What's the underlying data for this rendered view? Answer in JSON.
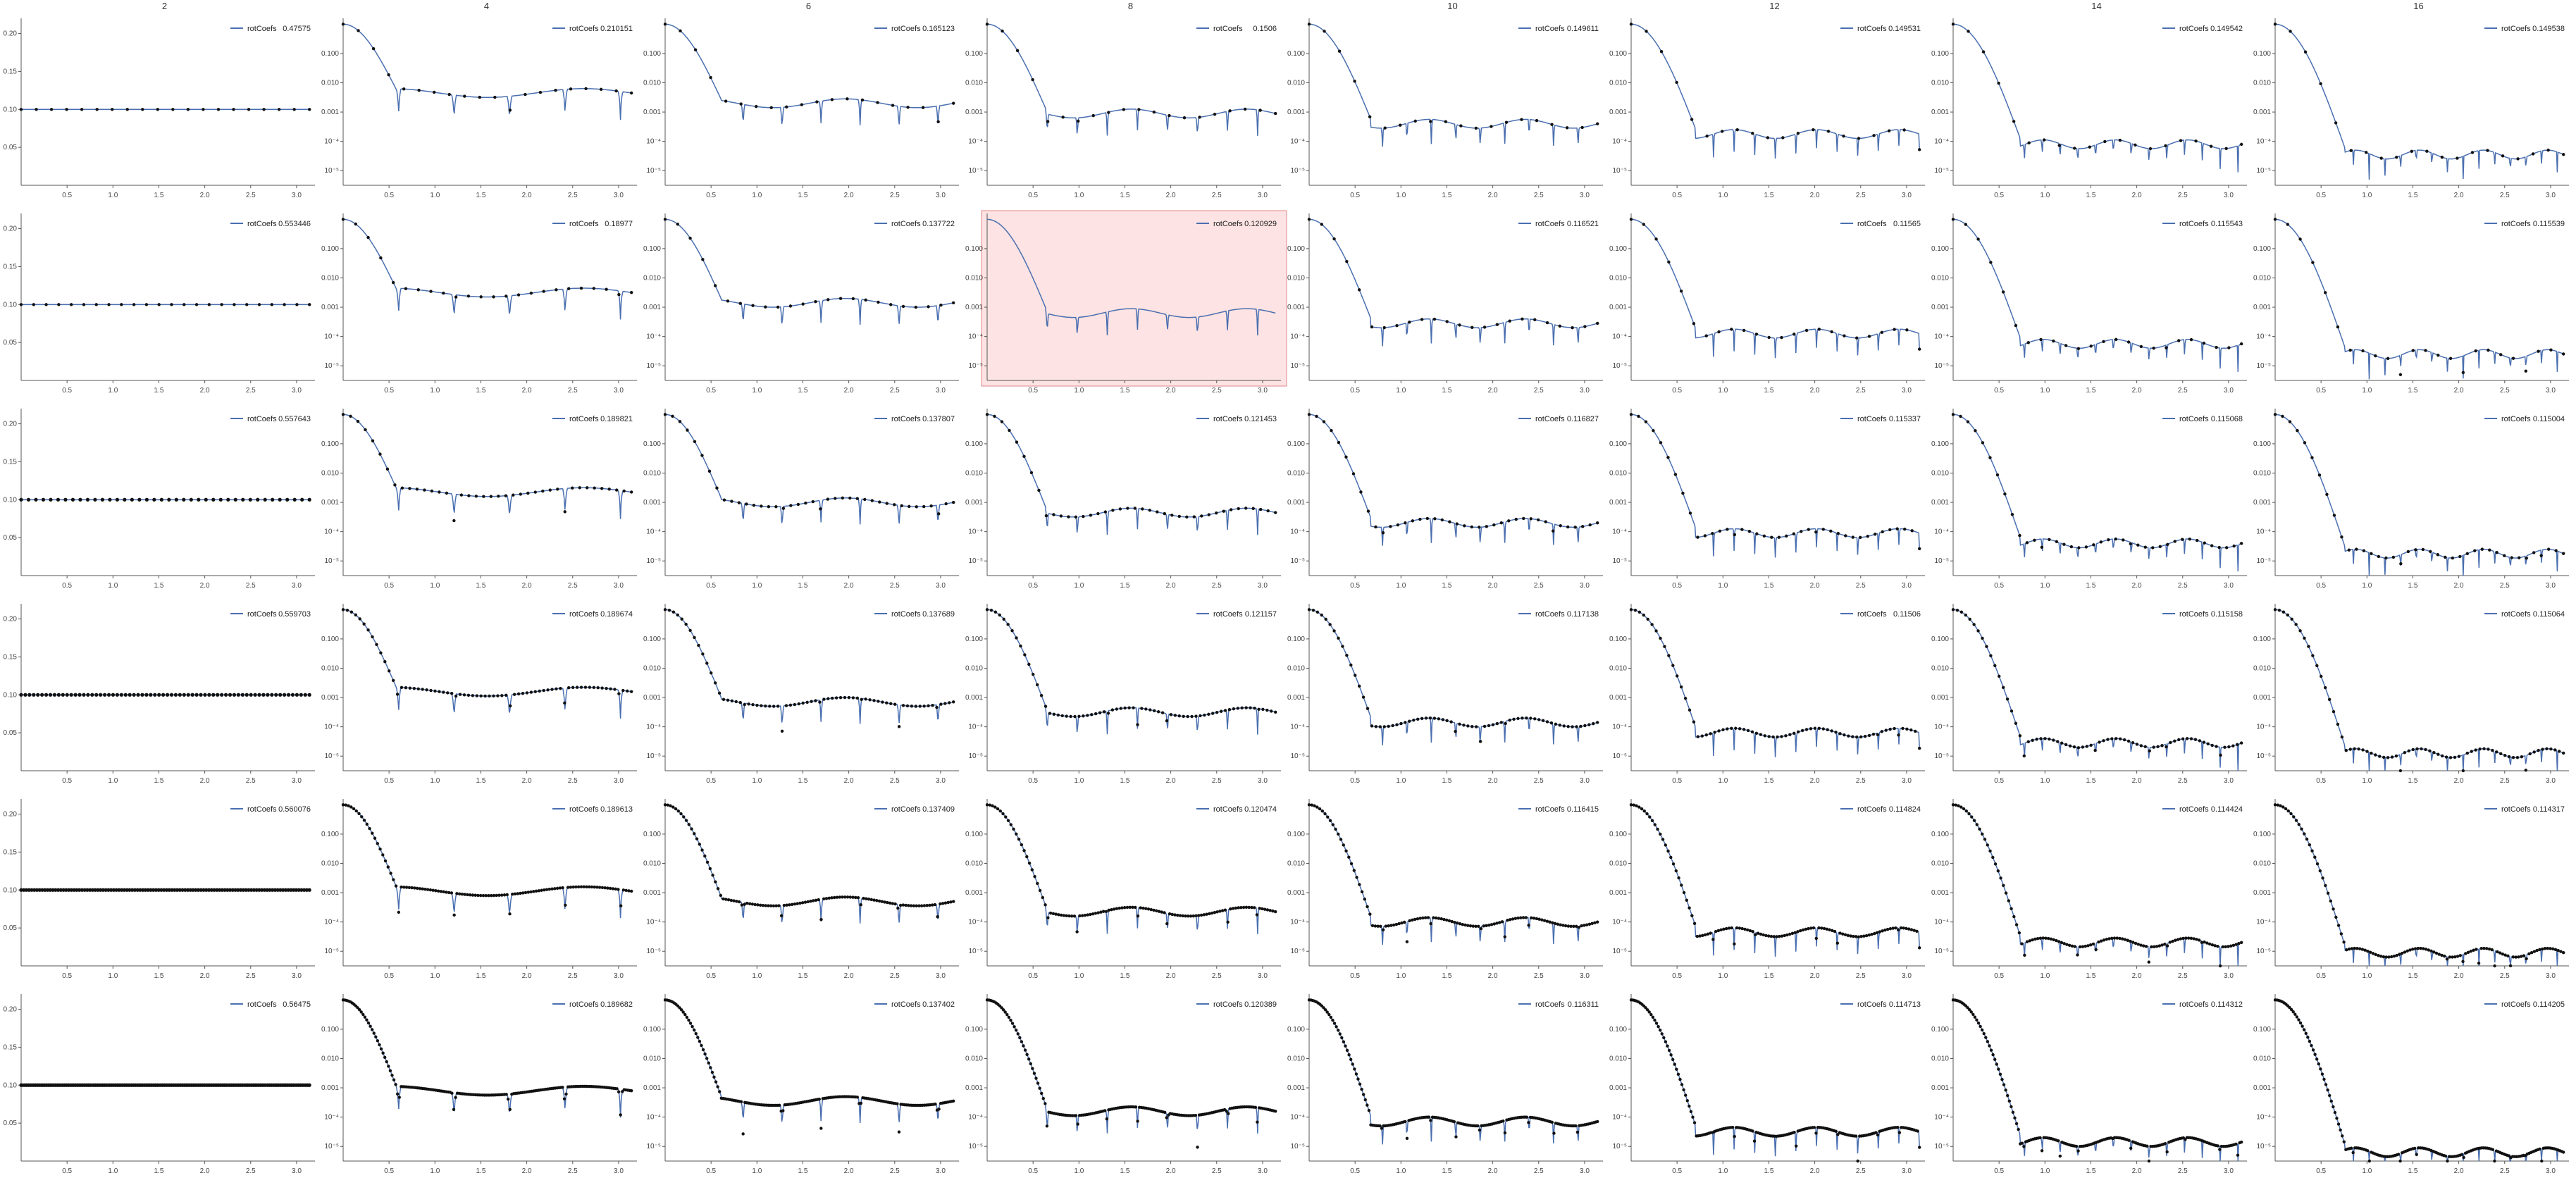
{
  "columns": [
    "2",
    "4",
    "6",
    "8",
    "10",
    "12",
    "14",
    "16"
  ],
  "colors": {
    "series": "#4a6fb0",
    "points": "#111111",
    "highlight_fill": "#fde3e3",
    "highlight_stroke": "#e08a8a"
  },
  "highlight": {
    "row": 1,
    "col": 3
  },
  "chart_data": {
    "type": "line",
    "layout": "grid of small multiples, 6 rows x 8 columns",
    "legend_label": "rotCoefs",
    "legend_position": "top-right",
    "x_range": [
      0,
      3.2
    ],
    "x_ticks": [
      "0.5",
      "1.0",
      "1.5",
      "2.0",
      "2.5",
      "3.0"
    ],
    "col1_yticks": [
      "0.20",
      "0.15",
      "0.10",
      "0.05"
    ],
    "log_yticks": [
      "0.100",
      "0.010",
      "0.001",
      "10⁻⁴",
      "10⁻⁵"
    ],
    "rows": [
      [
        "0.47575",
        "0.210151",
        "0.165123",
        "0.1506",
        "0.149611",
        "0.149531",
        "0.149542",
        "0.149538"
      ],
      [
        "0.553446",
        "0.18977",
        "0.137722",
        "0.120929",
        "0.116521",
        "0.11565",
        "0.115543",
        "0.115539"
      ],
      [
        "0.557643",
        "0.189821",
        "0.137807",
        "0.121453",
        "0.116827",
        "0.115337",
        "0.115068",
        "0.115004"
      ],
      [
        "0.559703",
        "0.189674",
        "0.137689",
        "0.121157",
        "0.117138",
        "0.11506",
        "0.115158",
        "0.115064"
      ],
      [
        "0.560076",
        "0.189613",
        "0.137409",
        "0.120474",
        "0.116415",
        "0.114824",
        "0.114424",
        "0.114317"
      ],
      [
        "0.56475",
        "0.189682",
        "0.137402",
        "0.120389",
        "0.116311",
        "0.114713",
        "0.114312",
        "0.114205"
      ]
    ],
    "points_per_row": [
      20,
      24,
      40,
      70,
      110,
      160
    ],
    "constant_level_col1": 0.1
  }
}
